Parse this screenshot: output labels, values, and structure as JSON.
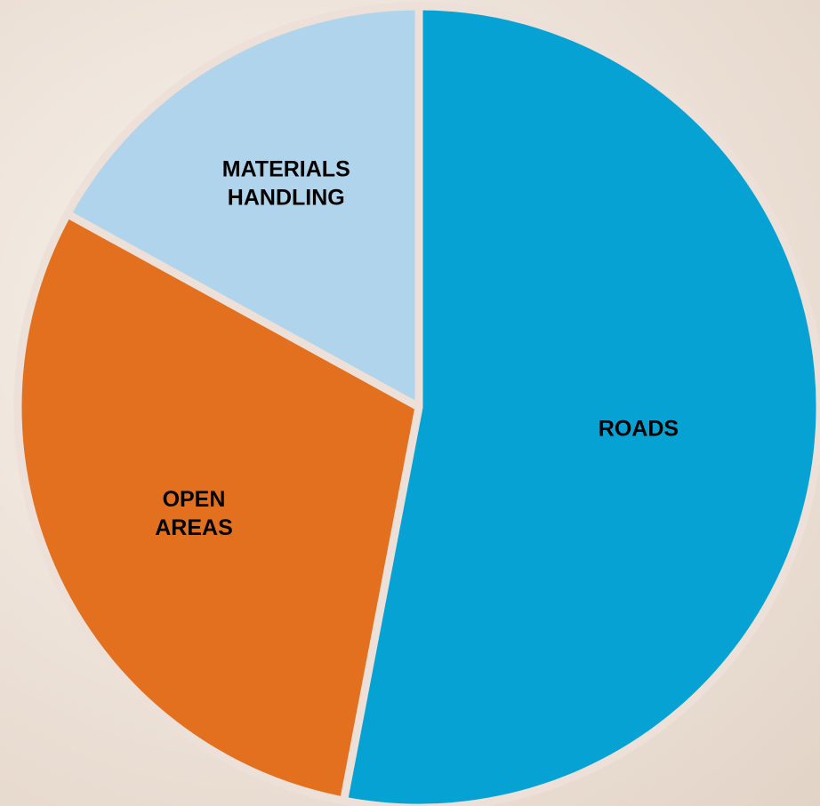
{
  "chart_data": {
    "type": "pie",
    "title": "",
    "slices": [
      {
        "label_lines": [
          "ROADS"
        ],
        "value": 53,
        "color": "#05a2d3"
      },
      {
        "label_lines": [
          "OPEN",
          "AREAS"
        ],
        "value": 30,
        "color": "#e3701e"
      },
      {
        "label_lines": [
          "MATERIALS",
          "HANDLING"
        ],
        "value": 17,
        "color": "#b0d4eb"
      }
    ],
    "legend": "none",
    "start_angle": "12 o'clock",
    "direction": "clockwise",
    "separator_color": "#ece0d8"
  }
}
